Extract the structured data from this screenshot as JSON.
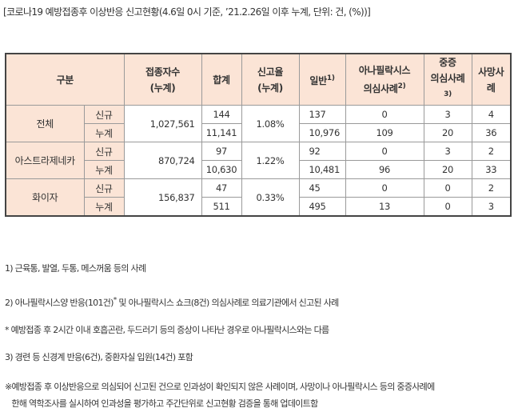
{
  "title": "[코로나19 예방접종후 이상반응 신고현황(4.6일 0시 기준, ’21.2.26일 이후 누계, 단위: 건, (%))]",
  "headers": {
    "category": "구분",
    "vaccinated_1": "접종자수",
    "vaccinated_2": "(누계)",
    "total": "합계",
    "rate_1": "신고율",
    "rate_2": "(누계)",
    "general": "일반",
    "general_sup": "1)",
    "anaphylaxis_1": "아나필락시스",
    "anaphylaxis_2": "의심사례",
    "anaphylaxis_sup": "2)",
    "severe_1": "중증",
    "severe_2": "의심사례",
    "severe_sup": "3)",
    "death": "사망사례"
  },
  "groups": [
    {
      "name": "전체",
      "vaccinated": "1,027,561",
      "rate": "1.08%",
      "new": {
        "label": "신규",
        "total": "144",
        "general": "137",
        "anaphylaxis": "0",
        "severe": "3",
        "death": "4"
      },
      "cum": {
        "label": "누계",
        "total": "11,141",
        "general": "10,976",
        "anaphylaxis": "109",
        "severe": "20",
        "death": "36"
      }
    },
    {
      "name": "아스트라제네카",
      "vaccinated": "870,724",
      "rate": "1.22%",
      "new": {
        "label": "신규",
        "total": "97",
        "general": "92",
        "anaphylaxis": "0",
        "severe": "3",
        "death": "2"
      },
      "cum": {
        "label": "누계",
        "total": "10,630",
        "general": "10,481",
        "anaphylaxis": "96",
        "severe": "20",
        "death": "33"
      }
    },
    {
      "name": "화이자",
      "vaccinated": "156,837",
      "rate": "0.33%",
      "new": {
        "label": "신규",
        "total": "47",
        "general": "45",
        "anaphylaxis": "0",
        "severe": "0",
        "death": "2"
      },
      "cum": {
        "label": "누계",
        "total": "511",
        "general": "495",
        "anaphylaxis": "13",
        "severe": "0",
        "death": "3"
      }
    }
  ],
  "notes": {
    "n1": "1) 근육통, 발열, 두통, 메스꺼움 등의 사례",
    "n2a": "2) 아나필락시스양 반응(101건)",
    "n2sup": "*",
    "n2b": " 및 아나필락시스 쇼크(8건) 의심사례로 의료기관에서 신고된 사례",
    "n3": "* 예방접종 후 2시간 이내 호흡곤란, 두드러기 등의 증상이 나타난 경우로 아나필락시스와는 다름",
    "n4": "3) 경련 등 신경계 반응(6건), 중환자실 입원(14건) 포함",
    "n5a": "※예방접종 후 이상반응으로 의심되어 신고된 건으로 인과성이 확인되지 않은 사례이며, 사망이나 아나필락시스 등의 중증사례에",
    "n5b": "   한해 역학조사를 실시하여 인과성을 평가하고 주간단위로 신고현황 검증을 통해 업데이트함"
  }
}
